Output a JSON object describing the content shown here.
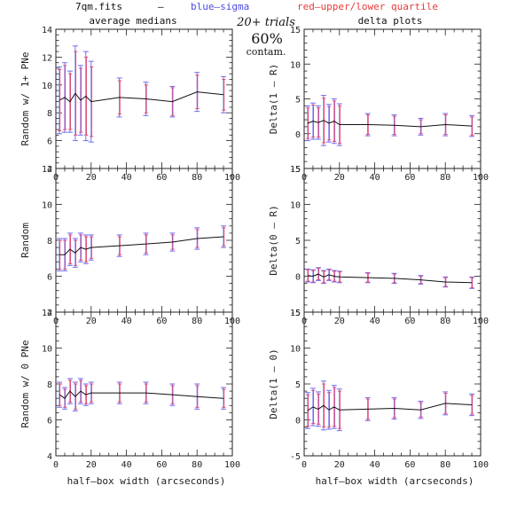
{
  "header": {
    "file": "7qm.fits",
    "dash": "–",
    "blue": "blue–sigma",
    "red": "red–upper/lower quartile",
    "left_title": "average medians",
    "right_title": "delta plots",
    "trials": "20+ trials",
    "contam_pct": "60%",
    "contam_label": "contam."
  },
  "colors": {
    "line": "#111111",
    "sigma": "#6f6ff0",
    "quartile": "#e04a7a"
  },
  "x_axis_label": "half–box width (arcseconds)",
  "chart_data": [
    {
      "type": "line",
      "id": "p1",
      "ylabel": "Random w/ 1+ PNe",
      "xlim": [
        0,
        100
      ],
      "ylim": [
        4,
        14
      ],
      "xticks": [
        0,
        20,
        40,
        60,
        80,
        100
      ],
      "yticks": [
        4,
        6,
        8,
        10,
        12,
        14
      ],
      "x": [
        2,
        5,
        8,
        11,
        14,
        17,
        20,
        36,
        51,
        66,
        80,
        95
      ],
      "y": [
        8.9,
        9.1,
        8.8,
        9.4,
        8.9,
        9.2,
        8.8,
        9.1,
        9.0,
        8.8,
        9.5,
        9.3
      ],
      "sigma": [
        2.4,
        2.5,
        2.2,
        3.4,
        2.5,
        3.2,
        2.9,
        1.4,
        1.2,
        1.1,
        1.4,
        1.3
      ],
      "quartile": [
        2.2,
        2.3,
        2.0,
        3.0,
        2.3,
        2.8,
        2.5,
        1.2,
        1.0,
        1.0,
        1.2,
        1.1
      ]
    },
    {
      "type": "line",
      "id": "p2",
      "ylabel": "Delta(1 – R)",
      "xlim": [
        0,
        100
      ],
      "ylim": [
        -5,
        15
      ],
      "xticks": [
        0,
        20,
        40,
        60,
        80,
        100
      ],
      "yticks": [
        -5,
        0,
        5,
        10,
        15
      ],
      "x": [
        2,
        5,
        8,
        11,
        14,
        17,
        20,
        36,
        51,
        66,
        80,
        95
      ],
      "y": [
        1.5,
        1.8,
        1.6,
        1.9,
        1.5,
        1.8,
        1.3,
        1.3,
        1.2,
        1.0,
        1.3,
        1.1
      ],
      "sigma": [
        2.5,
        2.6,
        2.4,
        3.6,
        2.7,
        3.2,
        3.0,
        1.6,
        1.5,
        1.2,
        1.6,
        1.5
      ],
      "quartile": [
        2.2,
        2.3,
        2.1,
        3.2,
        2.4,
        2.9,
        2.7,
        1.4,
        1.3,
        1.0,
        1.4,
        1.3
      ]
    },
    {
      "type": "line",
      "id": "p3",
      "ylabel": "Random",
      "xlim": [
        0,
        100
      ],
      "ylim": [
        4,
        12
      ],
      "xticks": [
        0,
        20,
        40,
        60,
        80,
        100
      ],
      "yticks": [
        4,
        6,
        8,
        10,
        12
      ],
      "x": [
        2,
        5,
        8,
        11,
        14,
        17,
        20,
        36,
        51,
        66,
        80,
        95
      ],
      "y": [
        7.2,
        7.2,
        7.5,
        7.3,
        7.6,
        7.5,
        7.6,
        7.7,
        7.8,
        7.9,
        8.1,
        8.2
      ],
      "sigma": [
        0.9,
        0.9,
        0.9,
        0.8,
        0.8,
        0.8,
        0.7,
        0.6,
        0.6,
        0.5,
        0.6,
        0.6
      ],
      "quartile": [
        0.8,
        0.8,
        0.8,
        0.7,
        0.7,
        0.7,
        0.6,
        0.5,
        0.5,
        0.4,
        0.5,
        0.5
      ]
    },
    {
      "type": "line",
      "id": "p4",
      "ylabel": "Delta(0 – R)",
      "xlim": [
        0,
        100
      ],
      "ylim": [
        -5,
        15
      ],
      "xticks": [
        0,
        20,
        40,
        60,
        80,
        100
      ],
      "yticks": [
        -5,
        0,
        5,
        10,
        15
      ],
      "x": [
        2,
        5,
        8,
        11,
        14,
        17,
        20,
        36,
        51,
        66,
        80,
        95
      ],
      "y": [
        0.1,
        0.0,
        0.3,
        -0.1,
        0.2,
        0.0,
        -0.1,
        -0.2,
        -0.3,
        -0.5,
        -0.8,
        -0.9
      ],
      "sigma": [
        0.9,
        0.9,
        0.9,
        0.9,
        0.8,
        0.8,
        0.8,
        0.7,
        0.7,
        0.6,
        0.7,
        0.8
      ],
      "quartile": [
        0.8,
        0.8,
        0.8,
        0.8,
        0.7,
        0.7,
        0.7,
        0.6,
        0.6,
        0.5,
        0.6,
        0.7
      ]
    },
    {
      "type": "line",
      "id": "p5",
      "ylabel": "Random w/ 0 PNe",
      "xlim": [
        0,
        100
      ],
      "ylim": [
        4,
        12
      ],
      "xticks": [
        0,
        20,
        40,
        60,
        80,
        100
      ],
      "yticks": [
        4,
        6,
        8,
        10,
        12
      ],
      "x": [
        2,
        5,
        8,
        11,
        14,
        17,
        20,
        36,
        51,
        66,
        80,
        95
      ],
      "y": [
        7.4,
        7.2,
        7.6,
        7.3,
        7.6,
        7.4,
        7.5,
        7.5,
        7.5,
        7.4,
        7.3,
        7.2
      ],
      "sigma": [
        0.7,
        0.6,
        0.7,
        0.8,
        0.7,
        0.6,
        0.6,
        0.6,
        0.6,
        0.6,
        0.7,
        0.6
      ],
      "quartile": [
        0.6,
        0.5,
        0.6,
        0.7,
        0.6,
        0.5,
        0.5,
        0.5,
        0.5,
        0.5,
        0.6,
        0.5
      ]
    },
    {
      "type": "line",
      "id": "p6",
      "ylabel": "Delta(1 – 0)",
      "xlim": [
        0,
        100
      ],
      "ylim": [
        -5,
        15
      ],
      "xticks": [
        0,
        20,
        40,
        60,
        80,
        100
      ],
      "yticks": [
        -5,
        0,
        5,
        10,
        15
      ],
      "x": [
        2,
        5,
        8,
        11,
        14,
        17,
        20,
        36,
        51,
        66,
        80,
        95
      ],
      "y": [
        1.3,
        1.8,
        1.5,
        2.0,
        1.4,
        1.8,
        1.4,
        1.5,
        1.6,
        1.4,
        2.3,
        2.1
      ],
      "sigma": [
        2.5,
        2.6,
        2.4,
        3.4,
        2.7,
        3.0,
        2.9,
        1.6,
        1.5,
        1.2,
        1.6,
        1.5
      ],
      "quartile": [
        2.2,
        2.3,
        2.1,
        3.0,
        2.4,
        2.7,
        2.6,
        1.4,
        1.3,
        1.0,
        1.4,
        1.3
      ]
    }
  ]
}
